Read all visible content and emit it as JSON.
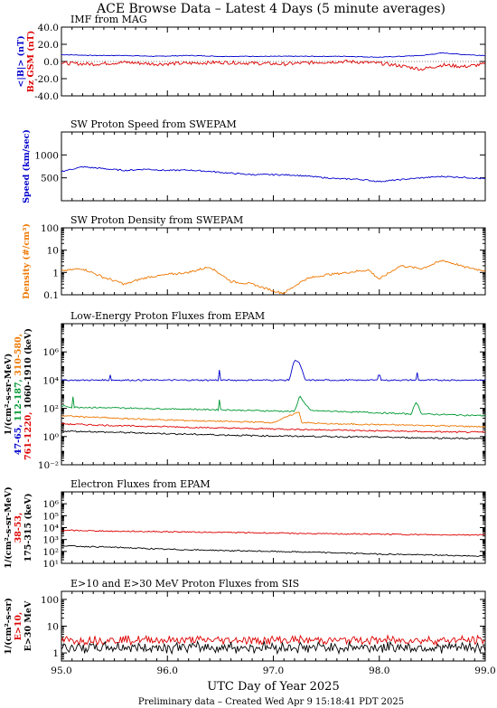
{
  "header": {
    "title": "ACE Browse Data – Latest 4 Days (5 minute averages)"
  },
  "footer": {
    "text": "Preliminary data – Created Wed Apr  9 15:18:41 PDT 2025"
  },
  "colors": {
    "blue": "#0000cc",
    "red": "#dd0000",
    "orange": "#ee7700",
    "green": "#009933",
    "black": "#000000"
  },
  "chart_data": [
    {
      "type": "line",
      "title": "IMF from MAG",
      "ylabel_parts": [
        {
          "text": "<|B|> (nT)",
          "color": "blue"
        },
        {
          "text": "Bz GSM (nT)",
          "color": "red"
        }
      ],
      "ylim": [
        -40,
        40
      ],
      "yticks": [
        -40,
        -20,
        0,
        20,
        40
      ],
      "ytick_labels": [
        "-40.0",
        "-20.0",
        "0.0",
        "20.0",
        "40.0"
      ],
      "xlim": [
        95.0,
        99.0
      ],
      "series": [
        {
          "color": "blue",
          "x": [
            95.0,
            95.3,
            95.6,
            95.9,
            96.2,
            96.5,
            96.8,
            97.1,
            97.4,
            97.7,
            98.0,
            98.2,
            98.4,
            98.6,
            98.8,
            99.0
          ],
          "values": [
            8,
            7,
            7,
            6,
            7,
            6,
            6,
            6,
            6,
            6,
            5,
            6,
            7,
            10,
            8,
            7
          ]
        },
        {
          "color": "red",
          "x": [
            95.0,
            95.3,
            95.6,
            95.9,
            96.2,
            96.5,
            96.8,
            97.1,
            97.4,
            97.7,
            98.0,
            98.2,
            98.4,
            98.6,
            98.8,
            99.0
          ],
          "values": [
            -2,
            -3,
            -1,
            -3,
            -2,
            -1,
            -2,
            -3,
            -1,
            0,
            -2,
            -5,
            -9,
            -4,
            -6,
            -3
          ]
        }
      ]
    },
    {
      "type": "line",
      "title": "SW Proton Speed from SWEPAM",
      "ylabel_parts": [
        {
          "text": "Speed (km/sec)",
          "color": "blue"
        }
      ],
      "ylim": [
        0,
        1500
      ],
      "yticks": [
        500,
        1000
      ],
      "ytick_labels": [
        "500",
        "1000"
      ],
      "xlim": [
        95.0,
        99.0
      ],
      "series": [
        {
          "color": "blue",
          "x": [
            95.0,
            95.2,
            95.4,
            95.6,
            95.8,
            96.0,
            96.2,
            96.4,
            96.6,
            96.8,
            97.0,
            97.2,
            97.4,
            97.6,
            97.8,
            98.0,
            98.2,
            98.4,
            98.6,
            98.8,
            99.0
          ],
          "values": [
            640,
            740,
            700,
            660,
            690,
            660,
            670,
            640,
            600,
            570,
            570,
            560,
            520,
            480,
            470,
            420,
            460,
            500,
            530,
            510,
            480
          ]
        }
      ]
    },
    {
      "type": "line",
      "title": "SW Proton Density from SWEPAM",
      "ylabel_parts": [
        {
          "text": "Density (#/cm³)",
          "color": "orange"
        }
      ],
      "yscale": "log",
      "ylim": [
        0.1,
        100
      ],
      "yticks": [
        0.1,
        1,
        10,
        100
      ],
      "ytick_labels": [
        "0.1",
        "1",
        "10",
        "100"
      ],
      "xlim": [
        95.0,
        99.0
      ],
      "series": [
        {
          "color": "orange",
          "x": [
            95.0,
            95.2,
            95.4,
            95.6,
            95.8,
            96.0,
            96.2,
            96.4,
            96.6,
            96.8,
            97.0,
            97.1,
            97.3,
            97.5,
            97.7,
            97.9,
            98.0,
            98.2,
            98.4,
            98.6,
            98.8,
            99.0
          ],
          "values": [
            1.2,
            1.5,
            0.6,
            0.3,
            0.6,
            0.8,
            1.0,
            1.8,
            0.4,
            0.3,
            0.15,
            0.12,
            0.5,
            0.8,
            1.0,
            1.3,
            0.5,
            2.0,
            1.5,
            3.5,
            1.8,
            1.2
          ]
        }
      ]
    },
    {
      "type": "line",
      "title": "Low-Energy Proton Fluxes from EPAM",
      "ylabel_parts": [
        {
          "text": "1/(cm²-s-sr-MeV)",
          "color": "black"
        },
        {
          "text": "47-65,",
          "color": "blue"
        },
        {
          "text": "112-187,",
          "color": "green"
        },
        {
          "text": "310-580,",
          "color": "orange"
        },
        {
          "text": "761-1220,",
          "color": "red"
        },
        {
          "text": "1060-1910 (keV)",
          "color": "black"
        }
      ],
      "yscale": "log",
      "ylim": [
        0.01,
        100000000
      ],
      "yticks": [
        0.01,
        1,
        100,
        10000,
        1000000
      ],
      "ytick_labels": [
        "10⁻²",
        "10⁰",
        "10²",
        "10⁴",
        "10⁶"
      ],
      "xlim": [
        95.0,
        99.0
      ],
      "series": [
        {
          "color": "blue",
          "x": [
            95.0,
            95.45,
            95.46,
            95.47,
            96.48,
            96.49,
            96.5,
            97.15,
            97.2,
            97.25,
            97.3,
            97.99,
            98.0,
            98.01,
            98.35,
            98.36,
            98.37,
            99.0
          ],
          "values": [
            10000,
            10000,
            25000,
            10000,
            10000,
            60000,
            10000,
            10000,
            300000,
            150000,
            10000,
            10000,
            100000,
            10000,
            10000,
            50000,
            10000,
            10000
          ]
        },
        {
          "color": "green",
          "x": [
            95.0,
            95.1,
            95.11,
            95.12,
            96.48,
            96.49,
            96.5,
            97.2,
            97.25,
            97.3,
            97.35,
            98.3,
            98.35,
            98.4,
            99.0
          ],
          "values": [
            150,
            120,
            800,
            120,
            80,
            500,
            80,
            60,
            800,
            200,
            70,
            40,
            300,
            40,
            30
          ]
        },
        {
          "color": "orange",
          "x": [
            95.0,
            95.5,
            96.0,
            96.5,
            97.0,
            97.25,
            97.26,
            97.5,
            98.0,
            98.5,
            99.0
          ],
          "values": [
            30,
            20,
            15,
            12,
            10,
            60,
            10,
            8,
            7,
            6,
            5
          ]
        },
        {
          "color": "red",
          "x": [
            95.0,
            95.5,
            96.0,
            96.5,
            97.0,
            97.5,
            98.0,
            98.5,
            99.0
          ],
          "values": [
            8,
            6,
            5,
            4,
            3.5,
            3,
            2.5,
            2.2,
            2
          ]
        },
        {
          "color": "black",
          "x": [
            95.0,
            95.5,
            96.0,
            96.5,
            97.0,
            97.5,
            98.0,
            98.5,
            99.0
          ],
          "values": [
            2.5,
            2,
            1.6,
            1.3,
            1.1,
            1.0,
            0.9,
            0.8,
            0.7
          ]
        }
      ]
    },
    {
      "type": "line",
      "title": "Electron Fluxes from EPAM",
      "ylabel_parts": [
        {
          "text": "1/(cm²-s-sr-MeV)",
          "color": "black"
        },
        {
          "text": "38-53,",
          "color": "red"
        },
        {
          "text": "175-315 (keV)",
          "color": "black"
        }
      ],
      "yscale": "log",
      "ylim": [
        10,
        10000000
      ],
      "yticks": [
        10,
        100,
        1000,
        10000,
        100000,
        1000000
      ],
      "ytick_labels": [
        "10¹",
        "10²",
        "10³",
        "10⁴",
        "10⁵",
        "10⁶"
      ],
      "xlim": [
        95.0,
        99.0
      ],
      "series": [
        {
          "color": "red",
          "x": [
            95.0,
            95.5,
            96.0,
            96.5,
            97.0,
            97.5,
            98.0,
            98.5,
            99.0
          ],
          "values": [
            6000,
            5000,
            4500,
            4000,
            3500,
            3000,
            2800,
            2500,
            2500
          ]
        },
        {
          "color": "black",
          "x": [
            95.0,
            95.5,
            96.0,
            96.5,
            97.0,
            97.5,
            98.0,
            98.5,
            99.0
          ],
          "values": [
            300,
            220,
            150,
            120,
            100,
            80,
            60,
            50,
            40
          ]
        }
      ]
    },
    {
      "type": "line",
      "title": "E>10 and E>30 MeV Proton Fluxes from SIS",
      "ylabel_parts": [
        {
          "text": "1/(cm²-s-sr)",
          "color": "black"
        },
        {
          "text": "E>10,",
          "color": "red"
        },
        {
          "text": "E>30 MeV",
          "color": "black"
        }
      ],
      "yscale": "log",
      "ylim": [
        0.5,
        200
      ],
      "yticks": [
        1,
        10,
        100
      ],
      "ytick_labels": [
        "1",
        "10",
        "100"
      ],
      "xlim": [
        95.0,
        99.0
      ],
      "xticks": [
        95,
        96,
        97,
        98,
        99
      ],
      "xtick_labels": [
        "95.0",
        "96.0",
        "97.0",
        "98.0",
        "99.0"
      ],
      "xlabel": "UTC Day of Year 2025",
      "series": [
        {
          "color": "red",
          "x": [
            95.0,
            96.0,
            97.0,
            98.0,
            99.0
          ],
          "values": [
            3.0,
            3.0,
            3.0,
            3.0,
            3.0
          ],
          "jitter": 0.35
        },
        {
          "color": "black",
          "x": [
            95.0,
            96.0,
            97.0,
            98.0,
            99.0
          ],
          "values": [
            1.6,
            1.6,
            1.6,
            1.6,
            1.6
          ],
          "jitter": 0.45
        }
      ]
    }
  ]
}
